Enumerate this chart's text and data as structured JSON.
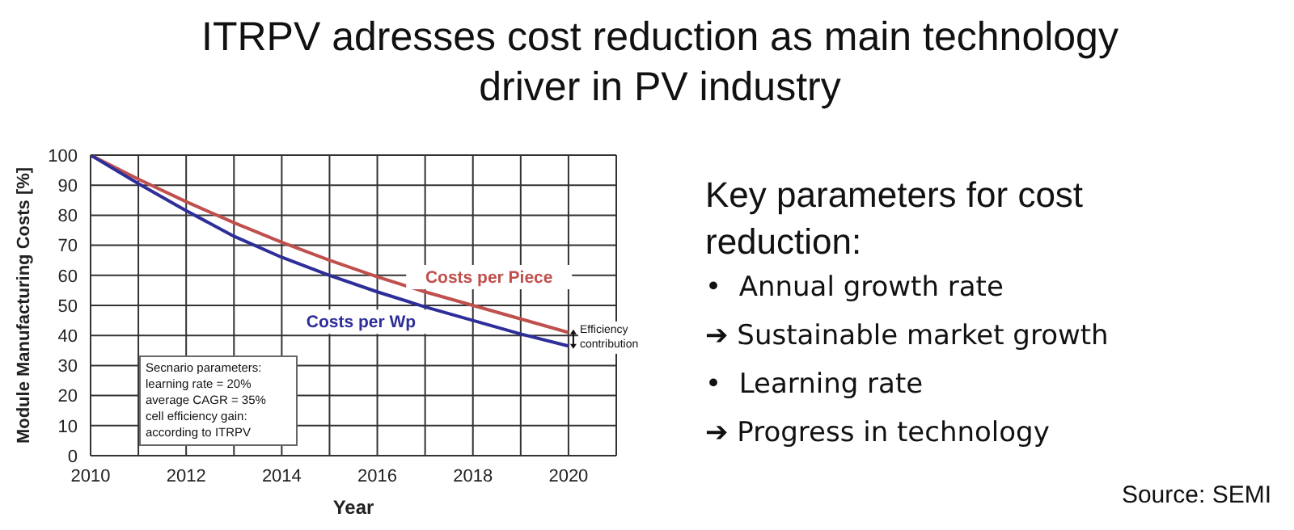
{
  "chart_data": {
    "type": "line",
    "title": "ITRPV adresses cost reduction as main technology driver in PV industry",
    "xlabel": "Year",
    "ylabel": "Module Manufacturing Costs [%]",
    "x": [
      2010,
      2011,
      2012,
      2013,
      2014,
      2015,
      2016,
      2017,
      2018,
      2019,
      2020
    ],
    "series": [
      {
        "name": "Costs per Piece",
        "color": "#c0504d",
        "values": [
          100,
          92,
          84.5,
          77.5,
          71,
          65,
          59.5,
          54.5,
          50,
          45.5,
          41
        ]
      },
      {
        "name": "Costs per Wp",
        "color": "#2e2e9a",
        "values": [
          100,
          90.5,
          81.5,
          73,
          66,
          60,
          54.5,
          49.5,
          45,
          40.5,
          36.5
        ]
      }
    ],
    "xlim": [
      2010,
      2021
    ],
    "xticks": [
      2010,
      {
        "value": 2011,
        "label": null
      },
      2012,
      {
        "value": 2013,
        "label": null
      },
      2014,
      {
        "value": 2015,
        "label": null
      },
      2016,
      {
        "value": 2017,
        "label": null
      },
      2018,
      {
        "value": 2019,
        "label": null
      },
      2020,
      {
        "value": 2021,
        "label": null
      }
    ],
    "ylim": [
      0,
      100
    ],
    "yticks": [
      0,
      10,
      20,
      30,
      40,
      50,
      60,
      70,
      80,
      90,
      100
    ],
    "grid": true,
    "legend": false,
    "marker": "none",
    "line_style": "solid",
    "annotations": [
      {
        "text": "Efficiency contribution",
        "x": 2020,
        "y": 38.75
      },
      "Secnario parameters:\nlearning rate = 20%\naverage CAGR = 35%\ncell efficiency gain:\naccording to ITRPV",
      "Key parameters for cost reduction:",
      "•  Annual growth rate",
      "➔ Sustainable market growth",
      "•  Learning rate",
      "➔ Progress in technology",
      "Source: SEMI"
    ]
  }
}
